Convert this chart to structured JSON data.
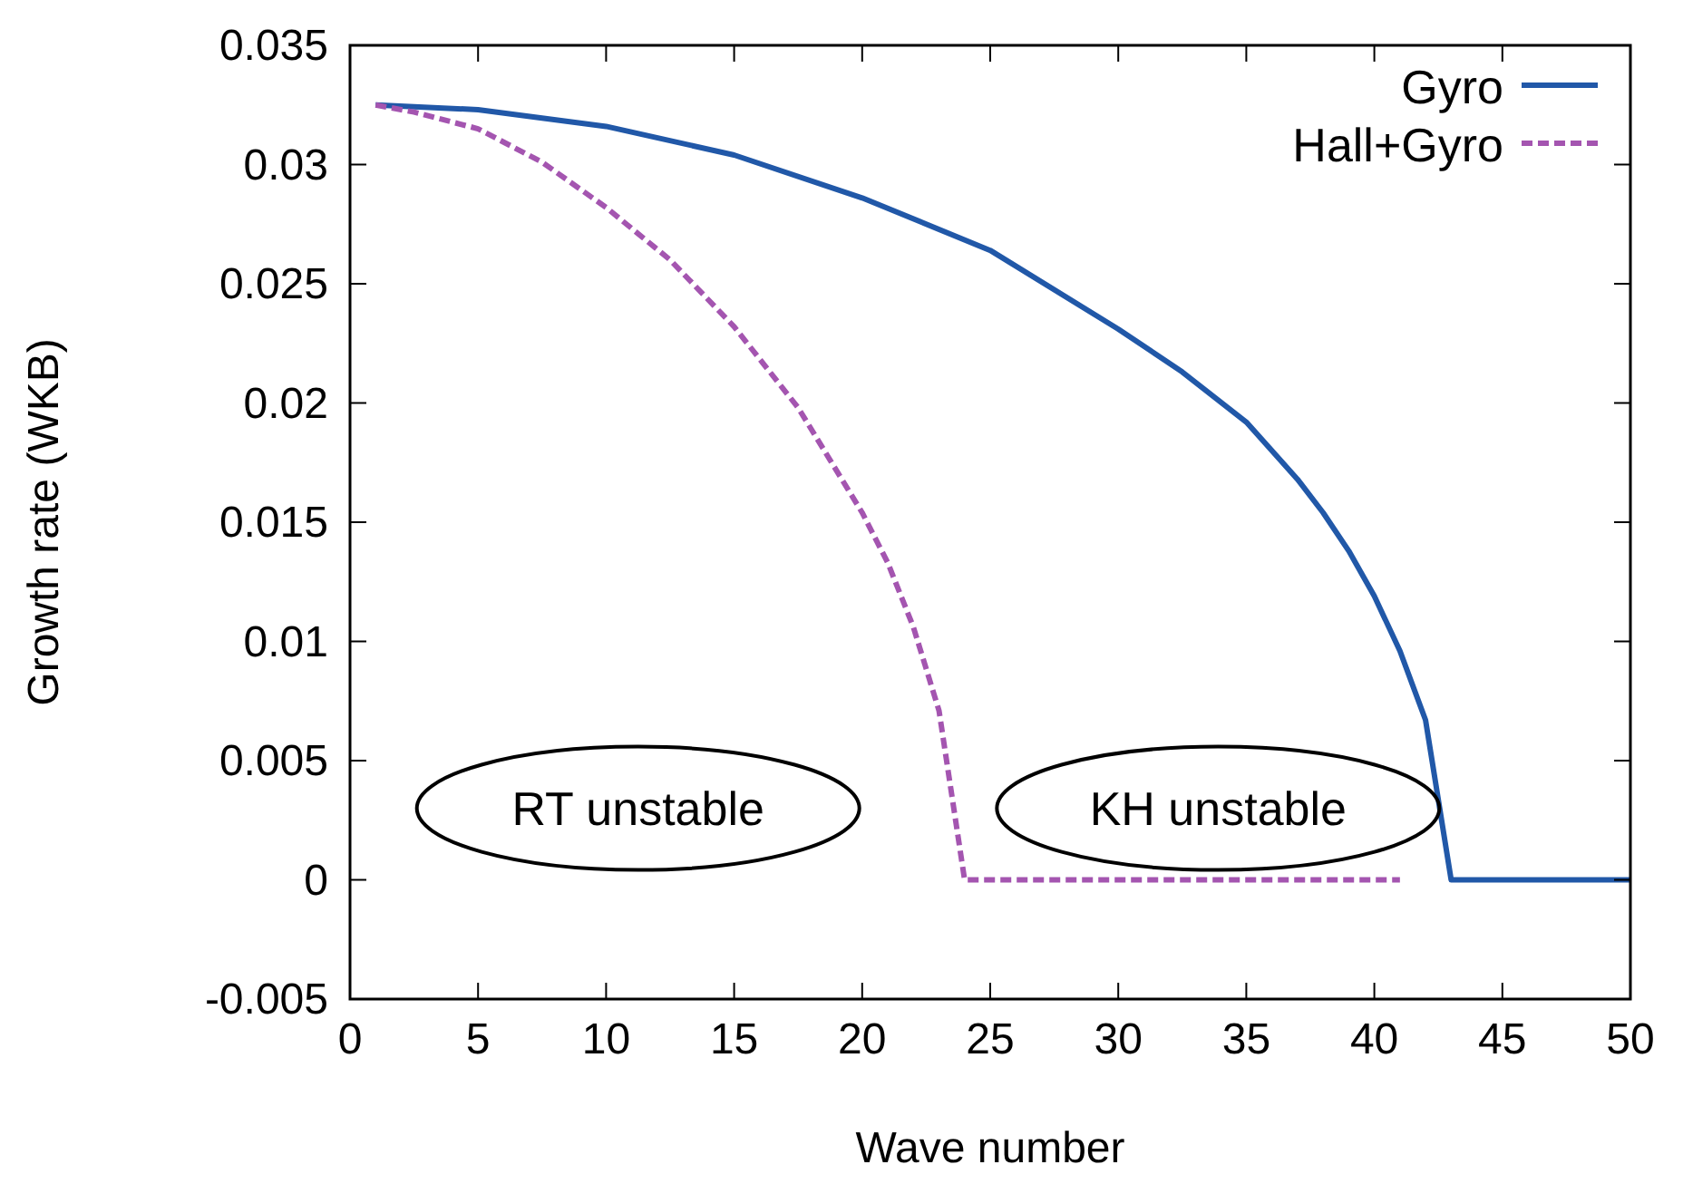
{
  "chart_data": {
    "type": "line",
    "xlabel": "Wave number",
    "ylabel": "Growth rate (WKB)",
    "xlim": [
      0,
      50
    ],
    "xticks": [
      0,
      5,
      10,
      15,
      20,
      25,
      30,
      35,
      40,
      45,
      50
    ],
    "ylim": [
      -0.005,
      0.035
    ],
    "yticks": [
      -0.005,
      0,
      0.005,
      0.01,
      0.015,
      0.02,
      0.025,
      0.03,
      0.035
    ],
    "grid": false,
    "legend": "top right",
    "marker": "none",
    "series": [
      {
        "name": "Gyro",
        "color": "#2158a8",
        "line_style": "solid",
        "x": [
          1,
          5,
          10,
          15,
          20,
          25,
          30,
          32.5,
          35,
          37,
          38,
          39,
          40,
          41,
          42,
          43,
          50
        ],
        "values": [
          0.0325,
          0.0323,
          0.0316,
          0.0304,
          0.0286,
          0.0264,
          0.0231,
          0.0213,
          0.0192,
          0.0168,
          0.0154,
          0.0138,
          0.0119,
          0.0096,
          0.0067,
          0,
          0
        ]
      },
      {
        "name": "Hall+Gyro",
        "color": "#a455b0",
        "line_style": "dashed",
        "x": [
          1,
          2.5,
          5,
          7.5,
          10,
          12.5,
          15,
          17.5,
          20,
          21,
          22,
          23,
          24,
          41
        ],
        "values": [
          0.0325,
          0.0322,
          0.0315,
          0.0301,
          0.0282,
          0.026,
          0.0232,
          0.0198,
          0.0154,
          0.0133,
          0.0106,
          0.0071,
          0,
          0
        ]
      }
    ],
    "annotations": [
      "RT unstable",
      "KH unstable"
    ]
  }
}
